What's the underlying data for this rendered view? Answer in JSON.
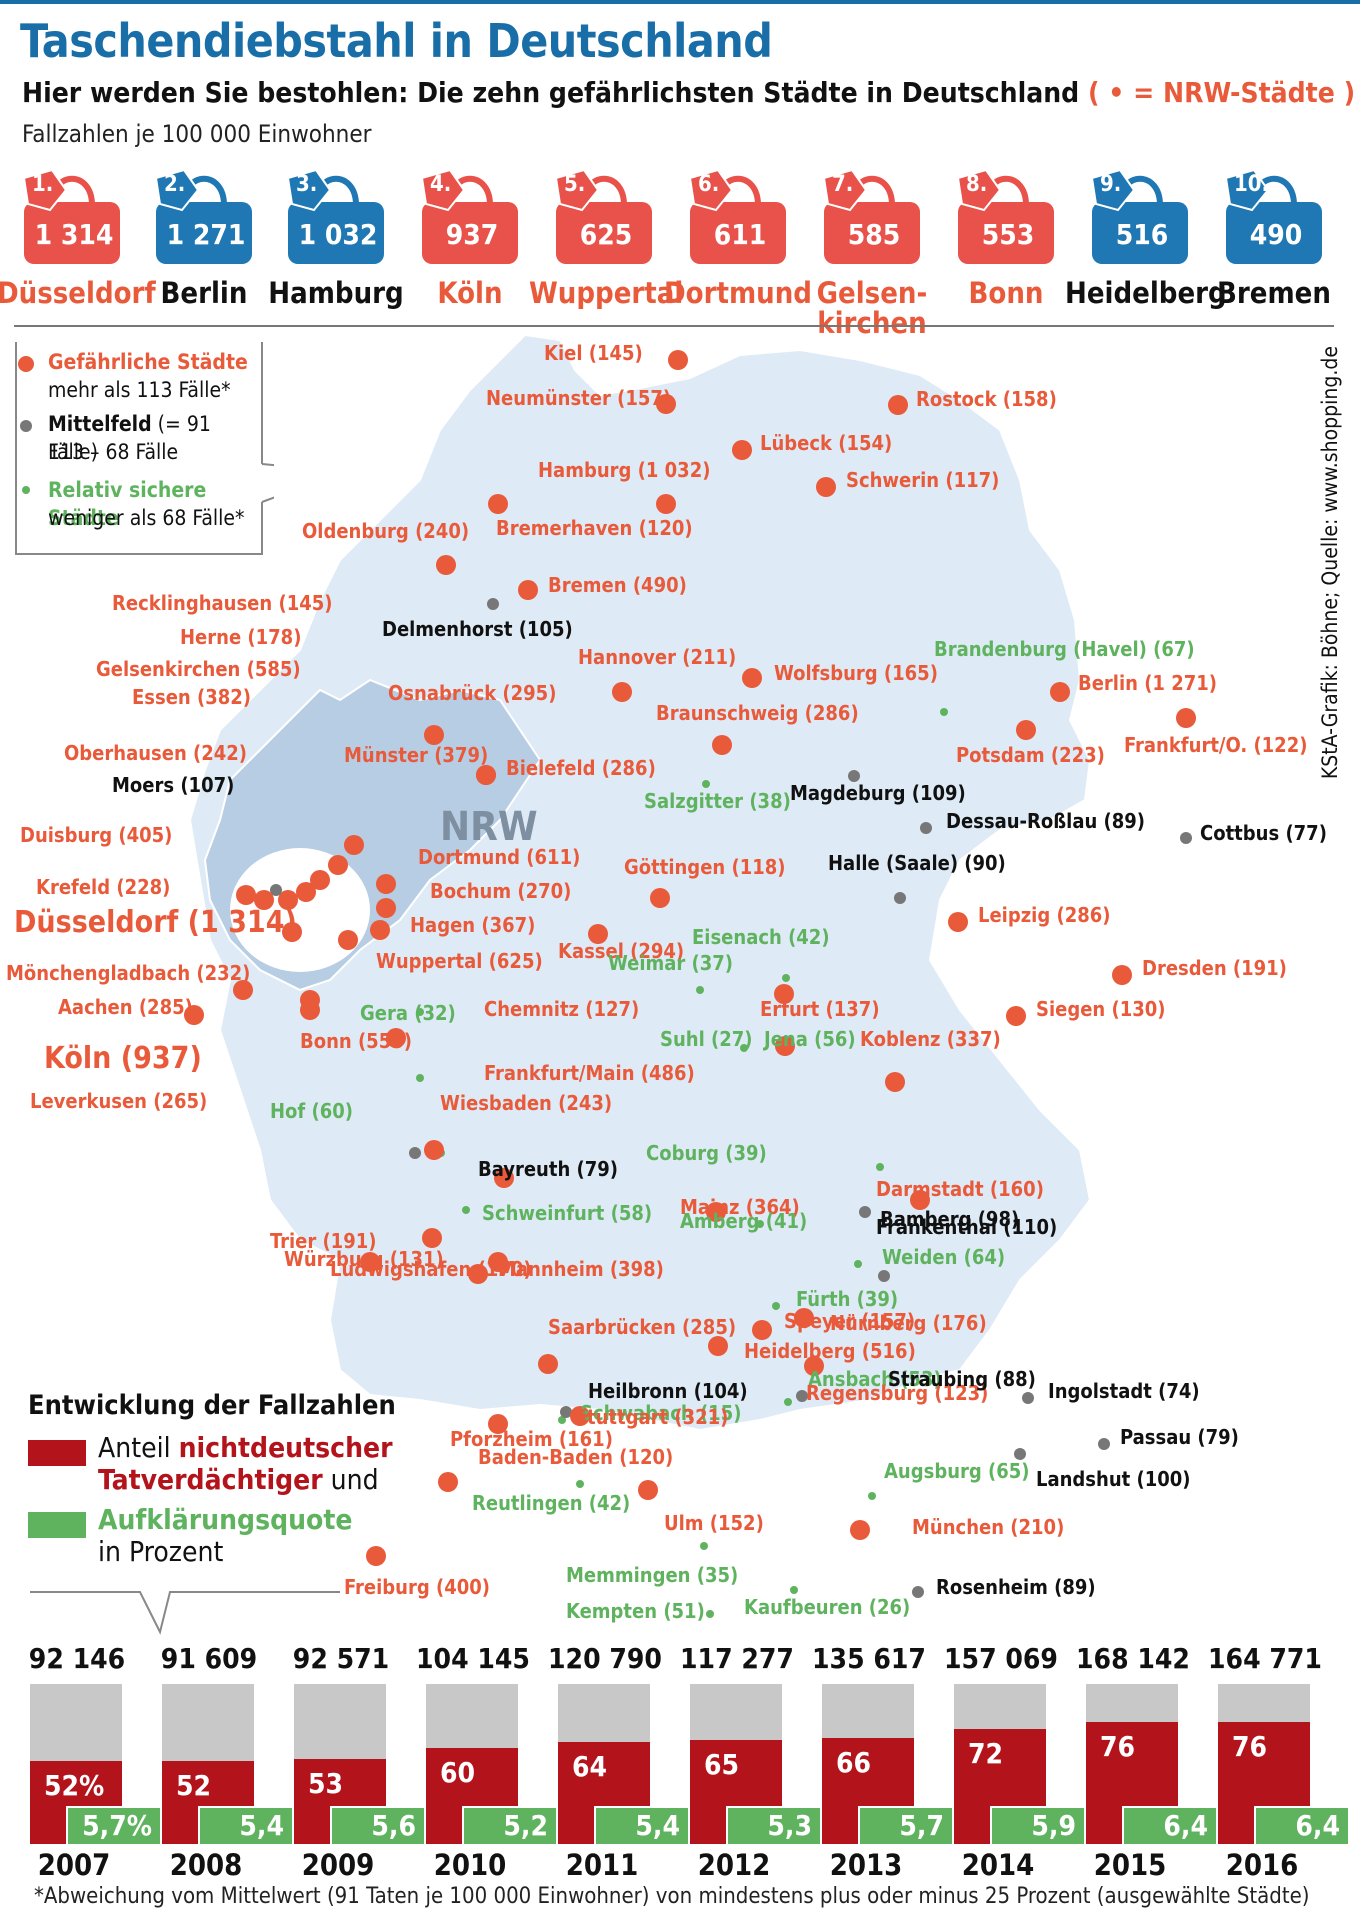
{
  "header": {
    "title": "Taschendiebstahl in Deutschland",
    "subtitle": "Hier werden Sie bestohlen: Die zehn gefährlichsten Städte in Deutschland",
    "subtitle_nrw": "( • = NRW-Städte )",
    "unit": "Fallzahlen je 100 000 Einwohner"
  },
  "top10": [
    {
      "rank": "1.",
      "value": "1 314",
      "city": "Düsseldorf",
      "nrw": true
    },
    {
      "rank": "2.",
      "value": "1 271",
      "city": "Berlin",
      "nrw": false
    },
    {
      "rank": "3.",
      "value": "1 032",
      "city": "Hamburg",
      "nrw": false
    },
    {
      "rank": "4.",
      "value": "937",
      "city": "Köln",
      "nrw": true
    },
    {
      "rank": "5.",
      "value": "625",
      "city": "Wuppertal",
      "nrw": true
    },
    {
      "rank": "6.",
      "value": "611",
      "city": "Dortmund",
      "nrw": true
    },
    {
      "rank": "7.",
      "value": "585",
      "city": "Gelsen-kirchen",
      "nrw": true
    },
    {
      "rank": "8.",
      "value": "553",
      "city": "Bonn",
      "nrw": true
    },
    {
      "rank": "9.",
      "value": "516",
      "city": "Heidelberg",
      "nrw": false
    },
    {
      "rank": "10.",
      "value": "490",
      "city": "Bremen",
      "nrw": false
    }
  ],
  "colors": {
    "nrw_bag": "#e8524a",
    "other_bag": "#1f77b4",
    "danger": "#e85a3a",
    "middle": "#777777",
    "safe": "#5fb35f",
    "map_fill": "#deeaf5",
    "nrw_fill": "#b7cde3",
    "nichtdeutsch": "#b3141b",
    "aufklaerung": "#5fb35f",
    "total_bar": "#c8c8c8"
  },
  "legend": {
    "dangerous_title": "Gefährliche Städte",
    "dangerous_sub": "mehr als 113 Fälle*",
    "middle_title": "Mittelfeld",
    "middle_title_rest": " (= 91 Fälle)",
    "middle_sub": "113 – 68 Fälle",
    "safe_title": "Relativ sichere Städte",
    "safe_sub": "weniger als 68 Fälle*"
  },
  "map": {
    "region_label": "NRW",
    "cities": [
      {
        "name": "Kiel (145)",
        "cat": "danger"
      },
      {
        "name": "Neumünster (157)",
        "cat": "danger"
      },
      {
        "name": "Rostock (158)",
        "cat": "danger"
      },
      {
        "name": "Lübeck (154)",
        "cat": "danger"
      },
      {
        "name": "Hamburg (1 032)",
        "cat": "danger"
      },
      {
        "name": "Schwerin (117)",
        "cat": "danger"
      },
      {
        "name": "Bremerhaven (120)",
        "cat": "danger"
      },
      {
        "name": "Oldenburg (240)",
        "cat": "danger"
      },
      {
        "name": "Bremen (490)",
        "cat": "danger"
      },
      {
        "name": "Delmenhorst (105)",
        "cat": "middle"
      },
      {
        "name": "Recklinghausen (145)",
        "cat": "danger"
      },
      {
        "name": "Herne (178)",
        "cat": "danger"
      },
      {
        "name": "Gelsenkirchen (585)",
        "cat": "danger"
      },
      {
        "name": "Essen (382)",
        "cat": "danger"
      },
      {
        "name": "Oberhausen (242)",
        "cat": "danger"
      },
      {
        "name": "Moers (107)",
        "cat": "middle"
      },
      {
        "name": "Duisburg (405)",
        "cat": "danger"
      },
      {
        "name": "Krefeld (228)",
        "cat": "danger"
      },
      {
        "name": "Düsseldorf (1 314)",
        "cat": "danger"
      },
      {
        "name": "Mönchengladbach (232)",
        "cat": "danger"
      },
      {
        "name": "Aachen (285)",
        "cat": "danger"
      },
      {
        "name": "Köln (937)",
        "cat": "danger"
      },
      {
        "name": "Leverkusen (265)",
        "cat": "danger"
      },
      {
        "name": "Hannover (211)",
        "cat": "danger"
      },
      {
        "name": "Wolfsburg (165)",
        "cat": "danger"
      },
      {
        "name": "Osnabrück (295)",
        "cat": "danger"
      },
      {
        "name": "Braunschweig (286)",
        "cat": "danger"
      },
      {
        "name": "Brandenburg (Havel) (67)",
        "cat": "safe"
      },
      {
        "name": "Berlin (1 271)",
        "cat": "danger"
      },
      {
        "name": "Frankfurt/O. (122)",
        "cat": "danger"
      },
      {
        "name": "Potsdam (223)",
        "cat": "danger"
      },
      {
        "name": "Münster (379)",
        "cat": "danger"
      },
      {
        "name": "Bielefeld (286)",
        "cat": "danger"
      },
      {
        "name": "Salzgitter (38)",
        "cat": "safe"
      },
      {
        "name": "Magdeburg (109)",
        "cat": "middle"
      },
      {
        "name": "Dessau-Roßlau (89)",
        "cat": "middle"
      },
      {
        "name": "Cottbus (77)",
        "cat": "middle"
      },
      {
        "name": "Dortmund (611)",
        "cat": "danger"
      },
      {
        "name": "Bochum (270)",
        "cat": "danger"
      },
      {
        "name": "Hagen (367)",
        "cat": "danger"
      },
      {
        "name": "Wuppertal (625)",
        "cat": "danger"
      },
      {
        "name": "Göttingen (118)",
        "cat": "danger"
      },
      {
        "name": "Halle (Saale) (90)",
        "cat": "middle"
      },
      {
        "name": "Leipzig (286)",
        "cat": "danger"
      },
      {
        "name": "Kassel (294)",
        "cat": "danger"
      },
      {
        "name": "Eisenach (42)",
        "cat": "safe"
      },
      {
        "name": "Weimar (37)",
        "cat": "safe"
      },
      {
        "name": "Dresden (191)",
        "cat": "danger"
      },
      {
        "name": "Siegen (130)",
        "cat": "danger"
      },
      {
        "name": "Erfurt (137)",
        "cat": "danger"
      },
      {
        "name": "Chemnitz (127)",
        "cat": "danger"
      },
      {
        "name": "Gera (32)",
        "cat": "safe"
      },
      {
        "name": "Bonn (553)",
        "cat": "danger"
      },
      {
        "name": "Suhl (27)",
        "cat": "safe"
      },
      {
        "name": "Jena (56)",
        "cat": "safe"
      },
      {
        "name": "Koblenz (337)",
        "cat": "danger"
      },
      {
        "name": "Frankfurt/Main (486)",
        "cat": "danger"
      },
      {
        "name": "Coburg (39)",
        "cat": "safe"
      },
      {
        "name": "Hof (60)",
        "cat": "safe"
      },
      {
        "name": "Wiesbaden (243)",
        "cat": "danger"
      },
      {
        "name": "Schweinfurt (58)",
        "cat": "safe"
      },
      {
        "name": "Darmstadt (160)",
        "cat": "danger"
      },
      {
        "name": "Bayreuth (79)",
        "cat": "middle"
      },
      {
        "name": "Mainz (364)",
        "cat": "danger"
      },
      {
        "name": "Bamberg (98)",
        "cat": "middle"
      },
      {
        "name": "Weiden (64)",
        "cat": "safe"
      },
      {
        "name": "Trier (191)",
        "cat": "danger"
      },
      {
        "name": "Würzburg (131)",
        "cat": "danger"
      },
      {
        "name": "Frankenthal (110)",
        "cat": "middle"
      },
      {
        "name": "Amberg (41)",
        "cat": "safe"
      },
      {
        "name": "Ludwigshafen (170)",
        "cat": "danger"
      },
      {
        "name": "Mannheim (398)",
        "cat": "danger"
      },
      {
        "name": "Fürth (39)",
        "cat": "safe"
      },
      {
        "name": "Nürnberg (176)",
        "cat": "danger"
      },
      {
        "name": "Saarbrücken (285)",
        "cat": "danger"
      },
      {
        "name": "Speyer (157)",
        "cat": "danger"
      },
      {
        "name": "Heidelberg (516)",
        "cat": "danger"
      },
      {
        "name": "Ansbach (53)",
        "cat": "safe"
      },
      {
        "name": "Schwabach (15)",
        "cat": "safe"
      },
      {
        "name": "Heilbronn (104)",
        "cat": "middle"
      },
      {
        "name": "Regensburg (123)",
        "cat": "danger"
      },
      {
        "name": "Ingolstadt (74)",
        "cat": "middle"
      },
      {
        "name": "Straubing (88)",
        "cat": "middle"
      },
      {
        "name": "Pforzheim (161)",
        "cat": "danger"
      },
      {
        "name": "Stuttgart (321)",
        "cat": "danger"
      },
      {
        "name": "Passau (79)",
        "cat": "middle"
      },
      {
        "name": "Baden-Baden (120)",
        "cat": "danger"
      },
      {
        "name": "Augsburg (65)",
        "cat": "safe"
      },
      {
        "name": "Landshut (100)",
        "cat": "middle"
      },
      {
        "name": "Reutlingen (42)",
        "cat": "safe"
      },
      {
        "name": "Ulm (152)",
        "cat": "danger"
      },
      {
        "name": "München (210)",
        "cat": "danger"
      },
      {
        "name": "Memmingen (35)",
        "cat": "safe"
      },
      {
        "name": "Freiburg (400)",
        "cat": "danger"
      },
      {
        "name": "Rosenheim (89)",
        "cat": "middle"
      },
      {
        "name": "Kempten (51)",
        "cat": "safe"
      },
      {
        "name": "Kaufbeuren (26)",
        "cat": "safe"
      }
    ]
  },
  "development": {
    "title": "Entwicklung der Fallzahlen",
    "legend_a1": "Anteil ",
    "legend_a2": "nichtdeutscher",
    "legend_a3": "Tatverdächtiger",
    "legend_a4": " und",
    "legend_b1": "Aufklärungsquote",
    "legend_b2": "in Prozent"
  },
  "chart_data": {
    "type": "bar",
    "categories": [
      "2007",
      "2008",
      "2009",
      "2010",
      "2011",
      "2012",
      "2013",
      "2014",
      "2015",
      "2016"
    ],
    "totals": [
      "92 146",
      "91 609",
      "92 571",
      "104 145",
      "120 790",
      "117 277",
      "135 617",
      "157 069",
      "168 142",
      "164 771"
    ],
    "series": [
      {
        "name": "Anteil nichtdeutscher Tatverdächtiger",
        "values": [
          52,
          52,
          53,
          60,
          64,
          65,
          66,
          72,
          76,
          76
        ],
        "labels": [
          "52%",
          "52",
          "53",
          "60",
          "64",
          "65",
          "66",
          "72",
          "76",
          "76"
        ]
      },
      {
        "name": "Aufklärungsquote",
        "values": [
          5.7,
          5.4,
          5.6,
          5.2,
          5.4,
          5.3,
          5.7,
          5.9,
          6.4,
          6.4
        ],
        "labels": [
          "5,7%",
          "5,4",
          "5,6",
          "5,2",
          "5,4",
          "5,3",
          "5,7",
          "5,9",
          "6,4",
          "6,4"
        ]
      }
    ],
    "ylim": [
      0,
      100
    ]
  },
  "footnote": "*Abweichung vom Mittelwert (91 Taten je 100 000 Einwohner) von mindestens plus oder minus 25 Prozent (ausgewählte Städte)",
  "source": "KStA-Grafik: Böhne; Quelle: www.shopping.de"
}
